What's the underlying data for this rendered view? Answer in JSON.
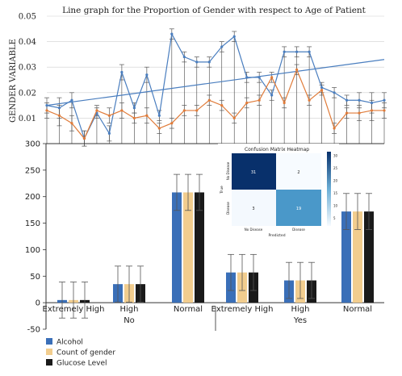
{
  "colors": {
    "blue": "#4a7ebf",
    "orange": "#e07b39",
    "alcohol": "#3a6fb8",
    "gender": "#f2cd8e",
    "glucose": "#1a1a1a",
    "error": "#555555",
    "grid": "#cfcfcf",
    "heatDark": "#08306b",
    "heatLight": "#f7fbff",
    "heatMid": "#4a98c9"
  },
  "chart_data": [
    {
      "type": "line",
      "title": "Line graph for the Proportion of Gender with respect to Age of Patient",
      "ylabel": "GENDER VARIABLE",
      "xlabel": "",
      "ylim": [
        0,
        0.05
      ],
      "yticks": [
        "0.05",
        "0.04",
        "0.03",
        "0.02",
        "0.01"
      ],
      "grid": true,
      "x": [
        1,
        2,
        3,
        4,
        5,
        6,
        7,
        8,
        9,
        10,
        11,
        12,
        13,
        14,
        15,
        16,
        17,
        18,
        19,
        20,
        21,
        22,
        23,
        24,
        25,
        26,
        27,
        28
      ],
      "series": [
        {
          "values": [
            0.015,
            0.014,
            0.017,
            0.002,
            0.012,
            0.004,
            0.028,
            0.014,
            0.027,
            0.011,
            0.043,
            0.034,
            0.032,
            0.032,
            0.038,
            0.042,
            0.026,
            0.026,
            0.019,
            0.036,
            0.036,
            0.036,
            0.022,
            0.02,
            0.017,
            0.017,
            0.016,
            0.017
          ]
        },
        {
          "values": [
            0.013,
            0.011,
            0.008,
            0.002,
            0.013,
            0.011,
            0.013,
            0.01,
            0.011,
            0.006,
            0.008,
            0.013,
            0.013,
            0.017,
            0.015,
            0.01,
            0.016,
            0.017,
            0.026,
            0.016,
            0.029,
            0.017,
            0.021,
            0.006,
            0.012,
            0.012,
            0.013,
            0.013
          ]
        }
      ],
      "errors": [
        0.003,
        0.004,
        0.003,
        0.003,
        0.002,
        0.003,
        0.003,
        0.002,
        0.003,
        0.002,
        0.002,
        0.002,
        0.002,
        0.002,
        0.002,
        0.002,
        0.002,
        0.002,
        0.002,
        0.002,
        0.002,
        0.002,
        0.002,
        0.002,
        0.002,
        0.003,
        0.004,
        0.003
      ],
      "trendline": {
        "start": 0.015,
        "end": 0.033
      }
    },
    {
      "type": "bar",
      "categories": [
        "Extremely High",
        "High",
        "Normal",
        "Extremely High",
        "High",
        "Normal"
      ],
      "groups": [
        "No",
        "Yes"
      ],
      "ylim": [
        -50,
        300
      ],
      "yticks": [
        "300",
        "250",
        "200",
        "150",
        "100",
        "50",
        "0",
        "-50"
      ],
      "series": [
        {
          "name": "Alcohol",
          "values": [
            5,
            35,
            208,
            57,
            42,
            172
          ]
        },
        {
          "name": "Count of gender",
          "values": [
            5,
            35,
            208,
            57,
            42,
            172
          ]
        },
        {
          "name": "Glucose Level",
          "values": [
            5,
            35,
            208,
            57,
            42,
            172
          ]
        }
      ],
      "errors": [
        34,
        34,
        34,
        34,
        34,
        34
      ],
      "legend_position": "bottom-left"
    },
    {
      "type": "heatmap",
      "title": "Confusion Matrix Heatmap",
      "xlabel": "Predicted",
      "ylabel": "True",
      "x_categories": [
        "No Disease",
        "Disease"
      ],
      "y_categories": [
        "No Disease",
        "Disease"
      ],
      "values": [
        [
          31,
          2
        ],
        [
          3,
          19
        ]
      ],
      "colorbar_ticks": [
        "30",
        "25",
        "20",
        "15",
        "10",
        "5"
      ]
    }
  ]
}
